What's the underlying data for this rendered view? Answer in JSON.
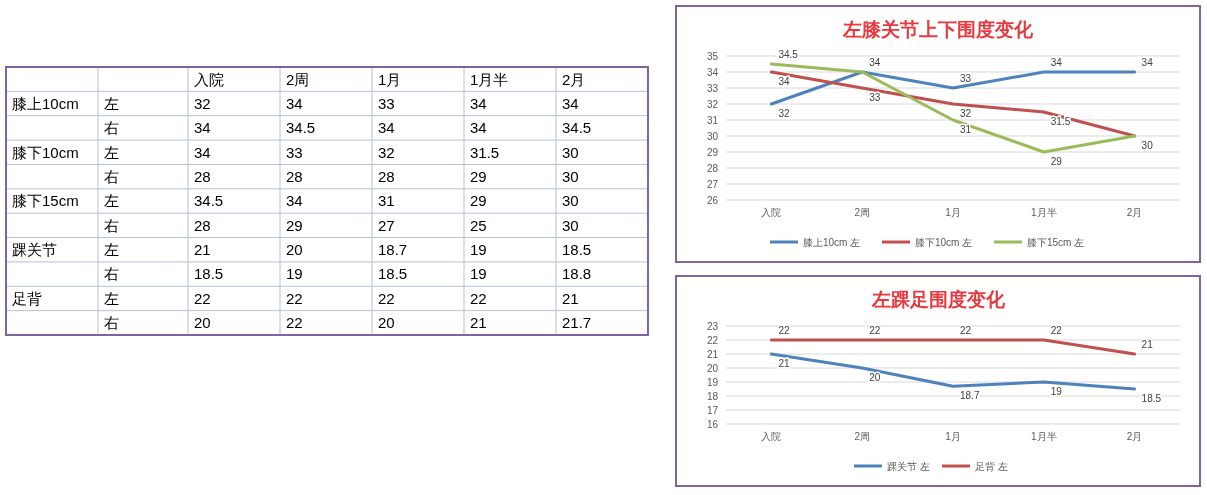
{
  "chart_data": [
    {
      "type": "heatmap",
      "categories": [
        "入院",
        "2周",
        "1月",
        "1月半",
        "2月"
      ],
      "y_categories": [
        "膝上10cm",
        null,
        "膝下10cm",
        null,
        "膝下15cm",
        null,
        "踝关节",
        null,
        "足背",
        null
      ],
      "y2_categories": [
        "左",
        "右",
        "左",
        "右",
        "左",
        "右",
        "左",
        "右",
        "左",
        "右"
      ],
      "cells": [
        [
          32,
          34,
          33,
          34,
          34
        ],
        [
          34,
          34.5,
          34,
          34,
          34.5
        ],
        [
          34,
          33,
          32,
          31.5,
          30
        ],
        [
          28,
          28,
          28,
          29,
          30
        ],
        [
          34.5,
          34,
          31,
          29,
          30
        ],
        [
          28,
          29,
          27,
          25,
          30
        ],
        [
          21,
          20,
          18.7,
          19,
          18.5
        ],
        [
          18.5,
          19,
          18.5,
          19,
          18.8
        ],
        [
          22,
          22,
          22,
          22,
          21
        ],
        [
          20,
          22,
          20,
          21,
          21.7
        ]
      ],
      "data_labels": true
    },
    {
      "type": "line",
      "title": "左膝关节上下围度变化",
      "categories": [
        "入院",
        "2周",
        "1月",
        "1月半",
        "2月"
      ],
      "series": [
        {
          "name": "膝上10cm 左",
          "color": "#4f81bd",
          "values": [
            32,
            34,
            33,
            34,
            34
          ],
          "value_labels": [
            "32",
            "34",
            "33",
            "34",
            "34"
          ]
        },
        {
          "name": "膝下10cm 左",
          "color": "#c0504d",
          "values": [
            34,
            33,
            32,
            31.5,
            30
          ],
          "value_labels": [
            "34",
            "33",
            "32",
            "31.5",
            "30"
          ]
        },
        {
          "name": "膝下15cm 左",
          "color": "#9bbb59",
          "values": [
            34.5,
            34,
            31,
            29,
            30
          ],
          "value_labels": [
            "34.5",
            null,
            "31",
            "29",
            null
          ]
        }
      ],
      "ylim": [
        26,
        35
      ],
      "yticks": [
        26,
        27,
        28,
        29,
        30,
        31,
        32,
        33,
        34,
        35
      ],
      "grid": "y",
      "legend": "bottom"
    },
    {
      "type": "line",
      "title": "左踝足围度变化",
      "categories": [
        "入院",
        "2周",
        "1月",
        "1月半",
        "2月"
      ],
      "series": [
        {
          "name": "踝关节 左",
          "color": "#4f81bd",
          "values": [
            21,
            20,
            18.7,
            19,
            18.5
          ]
        },
        {
          "name": "足背 左",
          "color": "#c0504d",
          "values": [
            22,
            22,
            22,
            22,
            21
          ]
        }
      ],
      "ylim": [
        16,
        23
      ],
      "yticks": [
        16,
        17,
        18,
        19,
        20,
        21,
        22,
        23
      ],
      "grid": "y",
      "legend": "bottom",
      "data_labels": true
    }
  ]
}
